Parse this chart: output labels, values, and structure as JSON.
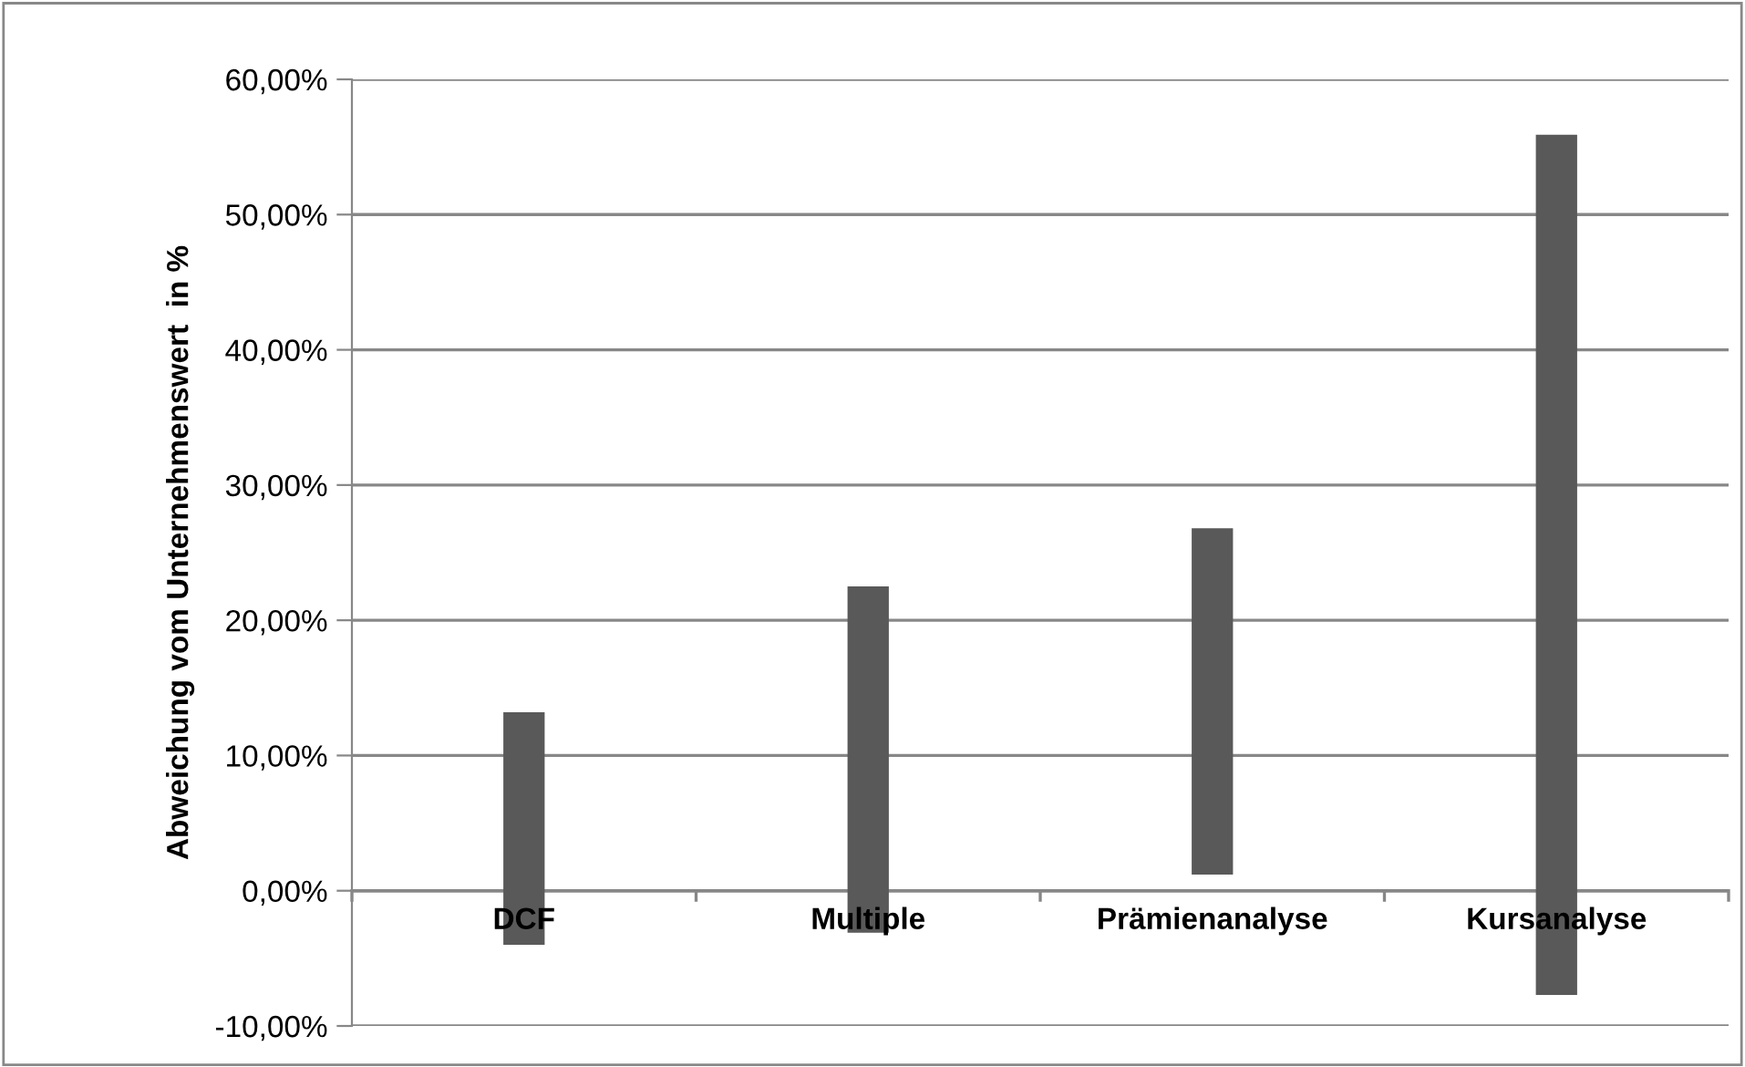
{
  "chart_data": {
    "type": "bar",
    "ylabel": "Abweichung vom Unternehmenswert  in %",
    "categories": [
      "DCF",
      "Multiple",
      "Prämienanalyse",
      "Kursanalyse"
    ],
    "base": [
      -4.0,
      -3.1,
      1.2,
      -7.7
    ],
    "values": [
      17.2,
      25.6,
      25.6,
      63.6
    ],
    "color": "#595959",
    "ylim": [
      -10,
      60
    ],
    "yticks": [
      {
        "value": -10,
        "label": "-10,00%"
      },
      {
        "value": 0,
        "label": "0,00%"
      },
      {
        "value": 10,
        "label": "10,00%"
      },
      {
        "value": 20,
        "label": "20,00%"
      },
      {
        "value": 30,
        "label": "30,00%"
      },
      {
        "value": 40,
        "label": "40,00%"
      },
      {
        "value": 50,
        "label": "50,00%"
      },
      {
        "value": 60,
        "label": "60,00%"
      }
    ],
    "grid": "y",
    "legend": false
  }
}
